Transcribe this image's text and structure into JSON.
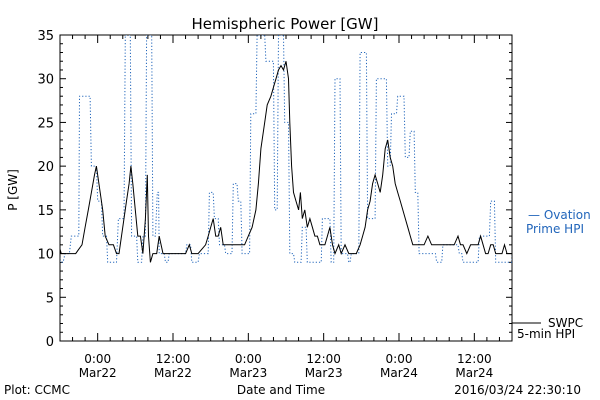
{
  "chart_data": {
    "type": "line",
    "title": "Hemispheric Power [GW]",
    "ylabel": "P [GW]",
    "xlabel": "Date and Time",
    "ylim": [
      0,
      35
    ],
    "y_ticks": [
      0,
      5,
      10,
      15,
      20,
      25,
      30,
      35
    ],
    "xlim_hours": [
      -6,
      66
    ],
    "x_ticks": [
      {
        "h": 0,
        "line1": "0:00",
        "line2": "Mar22"
      },
      {
        "h": 12,
        "line1": "12:00",
        "line2": "Mar22"
      },
      {
        "h": 24,
        "line1": "0:00",
        "line2": "Mar23"
      },
      {
        "h": 36,
        "line1": "12:00",
        "line2": "Mar23"
      },
      {
        "h": 48,
        "line1": "0:00",
        "line2": "Mar24"
      },
      {
        "h": 60,
        "line1": "12:00",
        "line2": "Mar24"
      }
    ],
    "grid": false,
    "series": [
      {
        "name_parts": [
          "— Ovation",
          "Prime HPI"
        ],
        "color": "#2266bb",
        "style": "dotted-step",
        "points": [
          [
            -6.2,
            11
          ],
          [
            -6,
            9
          ],
          [
            -5.5,
            9
          ],
          [
            -5.2,
            10
          ],
          [
            -4.5,
            10
          ],
          [
            -4.2,
            12
          ],
          [
            -3,
            12
          ],
          [
            -2.9,
            28
          ],
          [
            -1.2,
            28
          ],
          [
            -1,
            20
          ],
          [
            -0.2,
            20
          ],
          [
            0,
            16
          ],
          [
            0.6,
            16
          ],
          [
            0.8,
            12
          ],
          [
            1.4,
            12
          ],
          [
            1.6,
            9
          ],
          [
            3,
            9
          ],
          [
            3.3,
            14
          ],
          [
            4.2,
            14
          ],
          [
            4.4,
            35
          ],
          [
            5.2,
            35
          ],
          [
            5.4,
            12
          ],
          [
            6.2,
            12
          ],
          [
            6.4,
            9
          ],
          [
            7,
            9
          ],
          [
            7.2,
            12
          ],
          [
            7.6,
            12
          ],
          [
            7.8,
            35
          ],
          [
            8.6,
            35
          ],
          [
            8.8,
            12
          ],
          [
            9.2,
            12
          ],
          [
            9.5,
            17
          ],
          [
            9.7,
            17
          ],
          [
            9.8,
            10
          ],
          [
            10.6,
            10
          ],
          [
            10.8,
            9
          ],
          [
            11.2,
            9
          ],
          [
            11.4,
            10
          ],
          [
            14,
            10
          ],
          [
            14.2,
            11
          ],
          [
            14.8,
            11
          ],
          [
            15,
            9
          ],
          [
            16,
            9
          ],
          [
            16.2,
            10
          ],
          [
            17.6,
            10
          ],
          [
            17.8,
            17
          ],
          [
            18.4,
            17
          ],
          [
            18.6,
            14
          ],
          [
            19.2,
            14
          ],
          [
            19.4,
            11
          ],
          [
            20.2,
            11
          ],
          [
            20.4,
            10
          ],
          [
            21.4,
            10
          ],
          [
            21.6,
            18
          ],
          [
            22.2,
            18
          ],
          [
            22.4,
            16
          ],
          [
            22.8,
            16
          ],
          [
            23,
            10
          ],
          [
            24.2,
            10
          ],
          [
            24.4,
            26
          ],
          [
            25.2,
            26
          ],
          [
            25.4,
            35
          ],
          [
            26.6,
            35
          ],
          [
            26.8,
            32
          ],
          [
            28,
            32
          ],
          [
            28.2,
            15
          ],
          [
            28.6,
            15
          ],
          [
            28.8,
            35
          ],
          [
            29.6,
            35
          ],
          [
            29.8,
            25
          ],
          [
            30.4,
            25
          ],
          [
            30.6,
            10
          ],
          [
            31.2,
            10
          ],
          [
            31.4,
            9
          ],
          [
            32.4,
            9
          ],
          [
            32.6,
            13
          ],
          [
            33.2,
            13
          ],
          [
            33.4,
            9
          ],
          [
            35.6,
            9
          ],
          [
            35.8,
            14
          ],
          [
            37,
            14
          ],
          [
            37.2,
            9
          ],
          [
            37.6,
            9
          ],
          [
            37.8,
            30
          ],
          [
            38.6,
            30
          ],
          [
            38.8,
            10
          ],
          [
            39.8,
            10
          ],
          [
            40,
            9
          ],
          [
            40.2,
            9
          ],
          [
            40.4,
            10
          ],
          [
            41.6,
            10
          ],
          [
            41.8,
            33
          ],
          [
            42.8,
            33
          ],
          [
            43,
            14
          ],
          [
            44.2,
            14
          ],
          [
            44.4,
            30
          ],
          [
            46,
            30
          ],
          [
            46.2,
            20
          ],
          [
            46.6,
            20
          ],
          [
            46.8,
            26
          ],
          [
            47.6,
            26
          ],
          [
            47.8,
            28
          ],
          [
            48.8,
            28
          ],
          [
            49,
            21
          ],
          [
            49.6,
            21
          ],
          [
            49.8,
            24
          ],
          [
            50.4,
            24
          ],
          [
            50.6,
            17
          ],
          [
            51,
            17
          ],
          [
            51.2,
            10
          ],
          [
            53.8,
            10
          ],
          [
            54,
            9
          ],
          [
            54.8,
            9
          ],
          [
            55,
            11
          ],
          [
            57.4,
            11
          ],
          [
            57.6,
            10
          ],
          [
            58,
            10
          ],
          [
            58.2,
            9
          ],
          [
            60.6,
            9
          ],
          [
            60.8,
            12
          ],
          [
            62.4,
            12
          ],
          [
            62.6,
            16
          ],
          [
            63.2,
            16
          ],
          [
            63.4,
            9
          ],
          [
            66,
            9
          ],
          [
            66.2,
            12
          ],
          [
            66.4,
            11
          ]
        ]
      },
      {
        "name_parts": [
          "SWPC",
          "5-min HPI"
        ],
        "color": "#000000",
        "style": "solid",
        "points": [
          [
            -6.2,
            11
          ],
          [
            -5.8,
            10
          ],
          [
            -5,
            10
          ],
          [
            -4,
            10
          ],
          [
            -3.5,
            10
          ],
          [
            -3,
            10.5
          ],
          [
            -2.5,
            11
          ],
          [
            -2,
            13
          ],
          [
            -1.5,
            15
          ],
          [
            -1,
            17
          ],
          [
            -0.5,
            19
          ],
          [
            -0.2,
            20
          ],
          [
            0.2,
            18
          ],
          [
            0.8,
            15
          ],
          [
            1.2,
            12
          ],
          [
            1.8,
            11
          ],
          [
            2.5,
            11
          ],
          [
            3,
            10
          ],
          [
            3.4,
            10
          ],
          [
            3.8,
            12
          ],
          [
            4.2,
            14
          ],
          [
            4.6,
            16
          ],
          [
            5,
            18
          ],
          [
            5.3,
            20
          ],
          [
            5.6,
            18
          ],
          [
            6,
            15
          ],
          [
            6.4,
            12
          ],
          [
            6.8,
            12
          ],
          [
            7.2,
            10
          ],
          [
            7.6,
            14
          ],
          [
            7.9,
            19
          ],
          [
            8.1,
            12
          ],
          [
            8.4,
            9
          ],
          [
            8.8,
            10
          ],
          [
            9.4,
            10
          ],
          [
            9.8,
            12
          ],
          [
            10.4,
            10
          ],
          [
            10.8,
            10
          ],
          [
            11.6,
            10
          ],
          [
            12,
            10
          ],
          [
            13,
            10
          ],
          [
            14,
            10
          ],
          [
            14.6,
            11
          ],
          [
            15,
            10
          ],
          [
            16,
            10
          ],
          [
            17.2,
            11
          ],
          [
            17.6,
            12
          ],
          [
            18,
            13
          ],
          [
            18.4,
            14
          ],
          [
            18.8,
            12
          ],
          [
            19.2,
            12
          ],
          [
            19.6,
            13
          ],
          [
            20,
            11
          ],
          [
            20.8,
            11
          ],
          [
            22,
            11
          ],
          [
            22.8,
            11
          ],
          [
            23.4,
            11
          ],
          [
            24,
            12
          ],
          [
            24.6,
            13
          ],
          [
            25.2,
            15
          ],
          [
            25.6,
            18
          ],
          [
            26,
            22
          ],
          [
            26.6,
            25
          ],
          [
            27,
            27
          ],
          [
            27.6,
            28
          ],
          [
            28,
            29
          ],
          [
            28.4,
            30
          ],
          [
            28.8,
            31
          ],
          [
            29.2,
            31.5
          ],
          [
            29.6,
            31
          ],
          [
            30,
            32
          ],
          [
            30.4,
            30
          ],
          [
            30.6,
            25
          ],
          [
            30.9,
            20
          ],
          [
            31.2,
            17
          ],
          [
            31.6,
            16
          ],
          [
            32,
            15
          ],
          [
            32.3,
            17
          ],
          [
            32.6,
            14
          ],
          [
            33,
            15
          ],
          [
            33.4,
            13
          ],
          [
            33.8,
            14
          ],
          [
            34.2,
            13
          ],
          [
            34.6,
            12
          ],
          [
            35,
            12
          ],
          [
            35.4,
            11
          ],
          [
            35.8,
            11
          ],
          [
            36.2,
            11
          ],
          [
            36.6,
            12
          ],
          [
            37,
            13
          ],
          [
            37.4,
            11
          ],
          [
            37.8,
            10
          ],
          [
            38.4,
            11
          ],
          [
            38.8,
            10
          ],
          [
            39.4,
            11
          ],
          [
            40,
            10
          ],
          [
            40.6,
            10
          ],
          [
            41.2,
            10
          ],
          [
            41.8,
            11
          ],
          [
            42.2,
            12
          ],
          [
            42.6,
            13
          ],
          [
            43,
            15
          ],
          [
            43.4,
            16
          ],
          [
            43.8,
            18
          ],
          [
            44.2,
            19
          ],
          [
            44.6,
            18
          ],
          [
            45,
            17
          ],
          [
            45.4,
            19
          ],
          [
            45.8,
            22
          ],
          [
            46.2,
            23
          ],
          [
            46.6,
            21
          ],
          [
            47,
            20
          ],
          [
            47.4,
            18
          ],
          [
            47.8,
            17
          ],
          [
            48.2,
            16
          ],
          [
            48.6,
            15
          ],
          [
            49,
            14
          ],
          [
            49.4,
            13
          ],
          [
            49.8,
            12
          ],
          [
            50.2,
            11
          ],
          [
            50.8,
            11
          ],
          [
            51.4,
            11
          ],
          [
            52,
            11
          ],
          [
            52.6,
            12
          ],
          [
            53.2,
            11
          ],
          [
            53.8,
            11
          ],
          [
            54.4,
            11
          ],
          [
            55,
            11
          ],
          [
            55.6,
            11
          ],
          [
            56.2,
            11
          ],
          [
            56.8,
            11
          ],
          [
            57.4,
            12
          ],
          [
            57.8,
            11
          ],
          [
            58.2,
            11
          ],
          [
            58.8,
            10
          ],
          [
            59.4,
            11
          ],
          [
            60,
            11
          ],
          [
            60.6,
            11
          ],
          [
            61,
            12
          ],
          [
            61.4,
            11
          ],
          [
            61.8,
            10
          ],
          [
            62.2,
            10
          ],
          [
            62.6,
            11
          ],
          [
            63,
            11
          ],
          [
            63.4,
            10
          ],
          [
            64,
            10
          ],
          [
            64.4,
            10
          ],
          [
            64.8,
            11
          ],
          [
            65.2,
            10
          ],
          [
            65.6,
            10
          ],
          [
            66,
            10
          ],
          [
            66.4,
            10
          ]
        ]
      }
    ]
  },
  "footer": {
    "left": "Plot: CCMC",
    "right": "2016/03/24 22:30:10"
  }
}
